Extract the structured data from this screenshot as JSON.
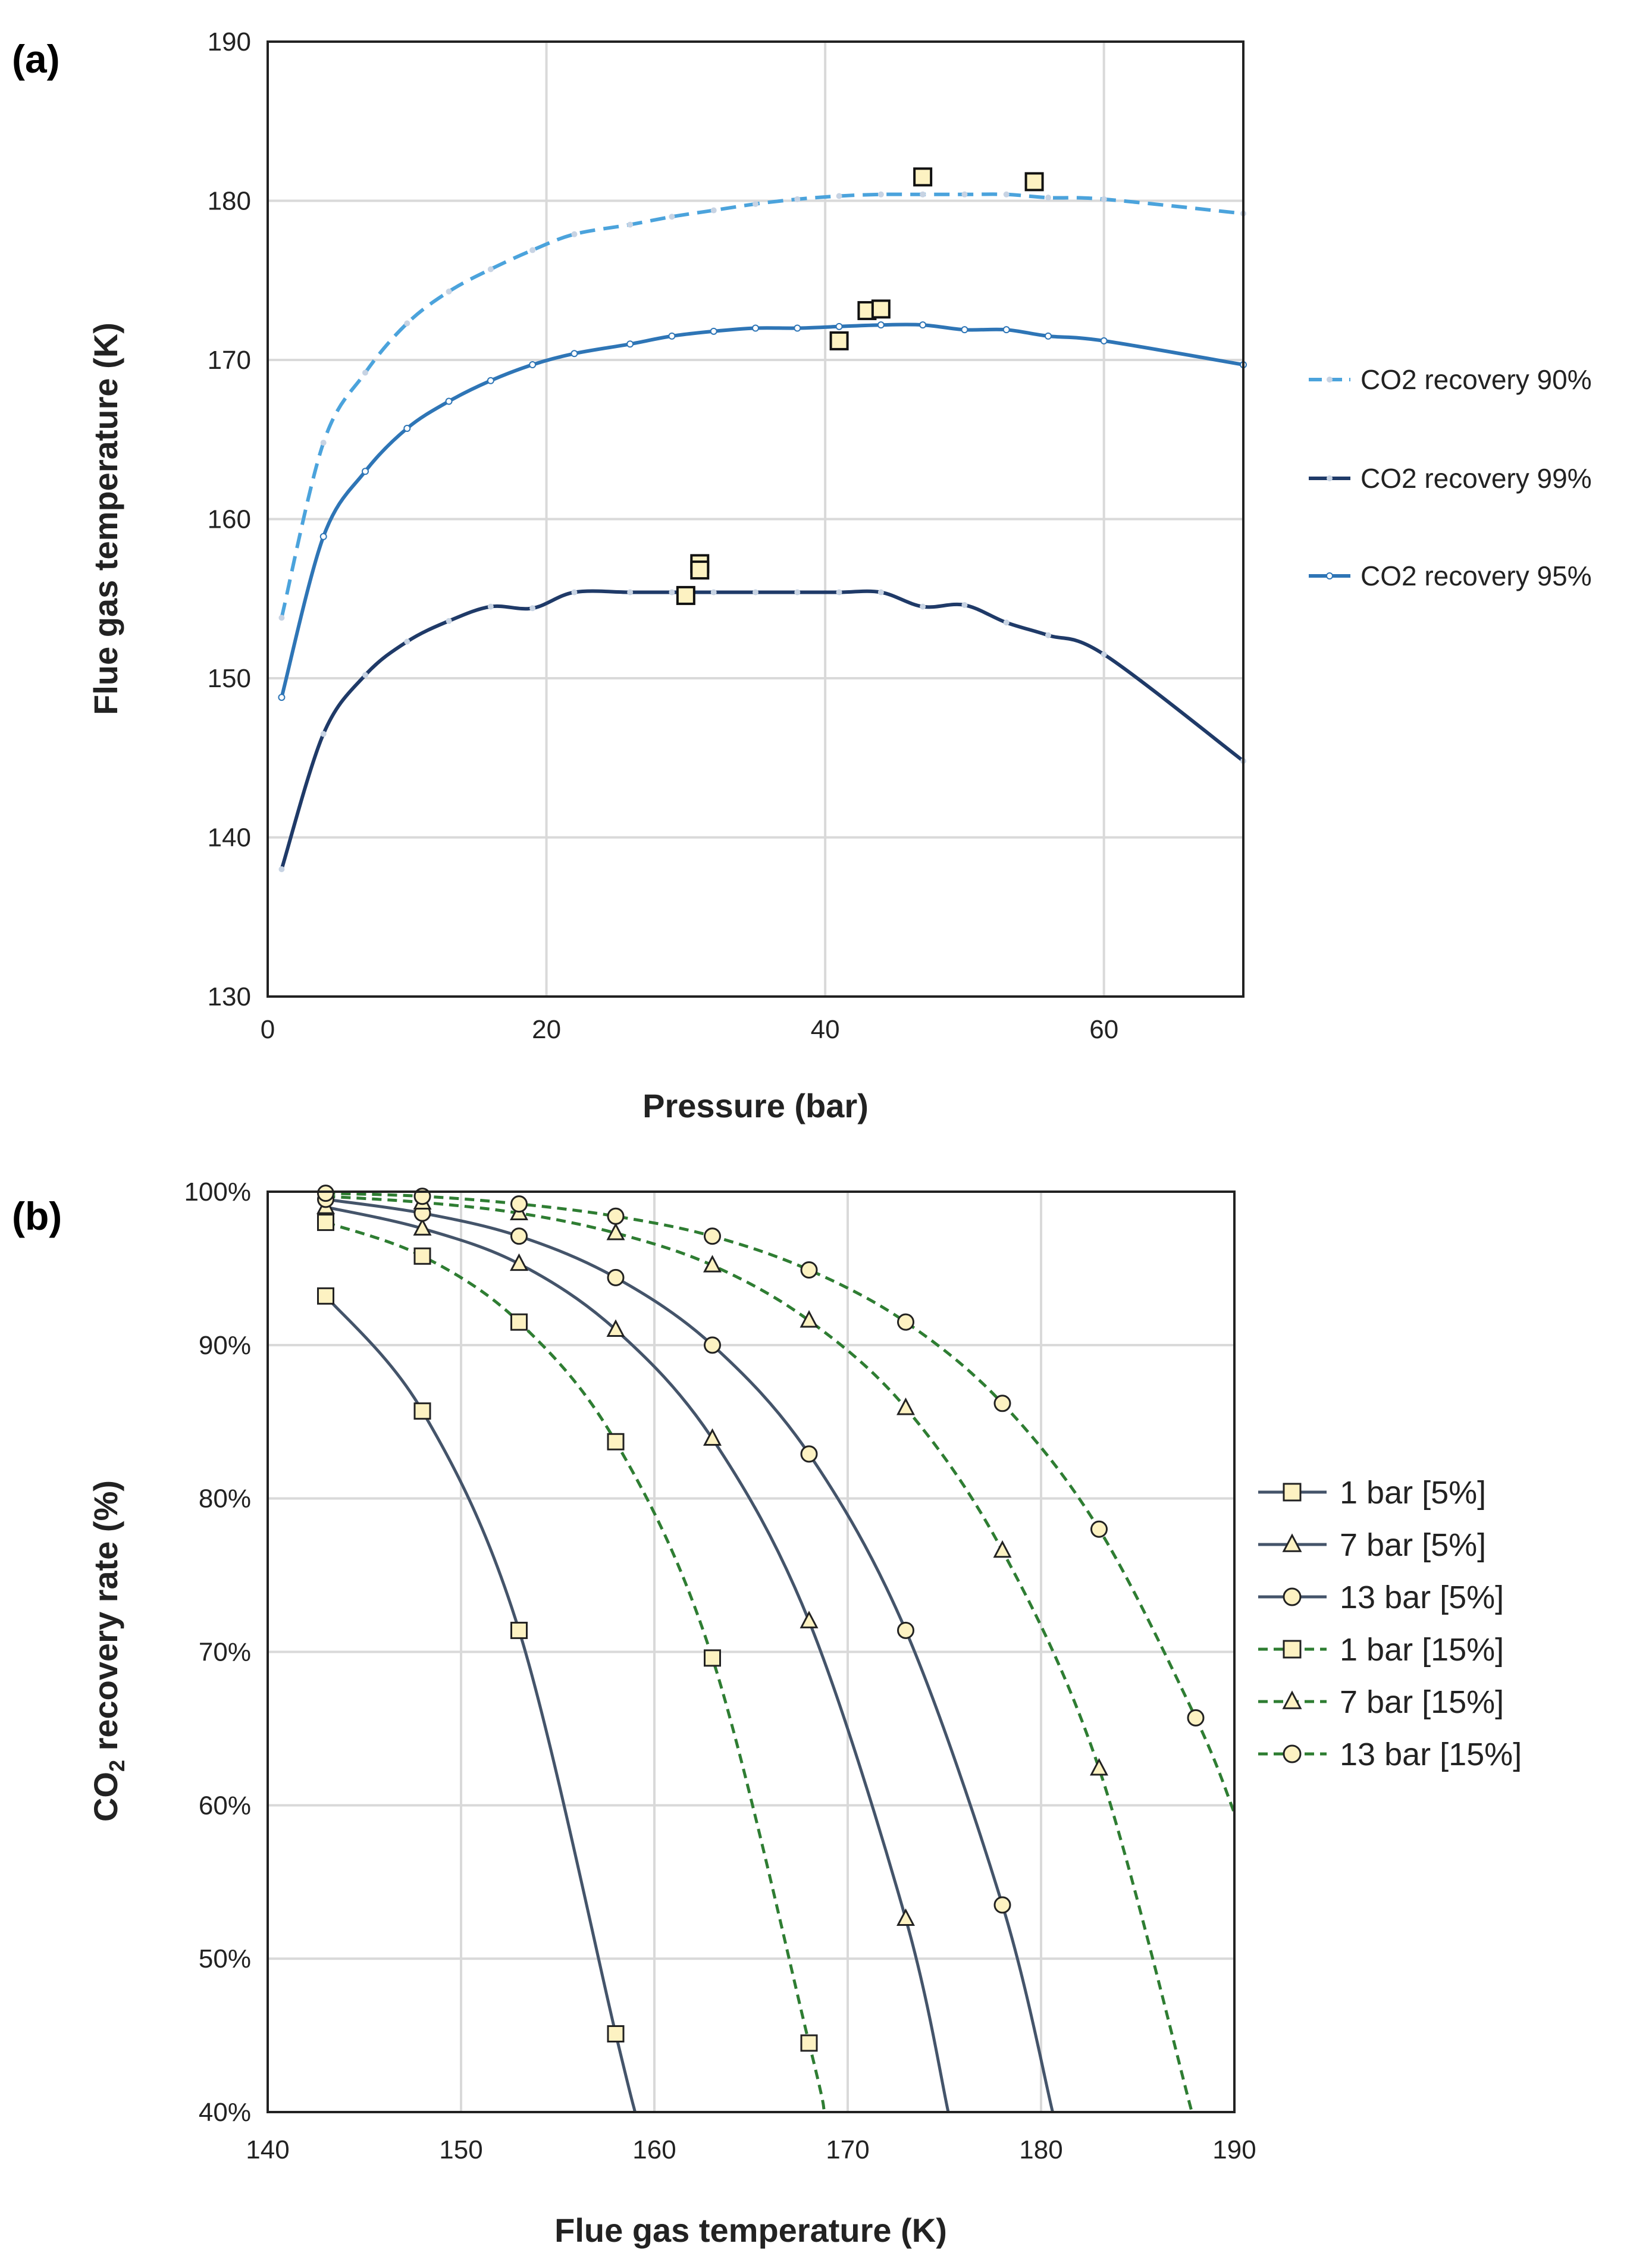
{
  "chart_data": [
    {
      "panel_label": "(a)",
      "type": "line",
      "xlabel": "Pressure (bar)",
      "ylabel": "Flue gas temperature (K)",
      "xlim": [
        0,
        70
      ],
      "ylim": [
        130,
        190
      ],
      "xticks": [
        0,
        20,
        40,
        60
      ],
      "yticks": [
        130,
        140,
        150,
        160,
        170,
        180,
        190
      ],
      "grid": true,
      "legend_position": "right",
      "series": [
        {
          "name": "CO2 recovery 90%",
          "color": "#4ba3dc",
          "style": "dashed",
          "marker": "dot",
          "x": [
            1,
            4,
            7,
            10,
            13,
            16,
            19,
            22,
            26,
            29,
            32,
            35,
            38,
            41,
            44,
            47,
            50,
            53,
            56,
            60,
            70
          ],
          "y": [
            153.8,
            164.8,
            169.2,
            172.3,
            174.3,
            175.7,
            176.9,
            177.9,
            178.5,
            179.0,
            179.4,
            179.8,
            180.1,
            180.3,
            180.4,
            180.4,
            180.4,
            180.4,
            180.2,
            180.1,
            179.2
          ]
        },
        {
          "name": "CO2 recovery 99%",
          "color": "#1f3a68",
          "style": "solid",
          "marker": "dot",
          "x": [
            1,
            4,
            7,
            10,
            13,
            16,
            19,
            22,
            26,
            29,
            32,
            35,
            38,
            41,
            44,
            47,
            50,
            53,
            56,
            60,
            70
          ],
          "y": [
            138.0,
            146.5,
            150.2,
            152.3,
            153.6,
            154.5,
            154.4,
            155.4,
            155.4,
            155.4,
            155.4,
            155.4,
            155.4,
            155.4,
            155.4,
            154.5,
            154.6,
            153.5,
            152.7,
            151.5,
            144.8
          ]
        },
        {
          "name": "CO2 recovery 95%",
          "color": "#2e75b6",
          "style": "solid",
          "marker": "open-circle",
          "x": [
            1,
            4,
            7,
            10,
            13,
            16,
            19,
            22,
            26,
            29,
            32,
            35,
            38,
            41,
            44,
            47,
            50,
            53,
            56,
            60,
            70
          ],
          "y": [
            148.8,
            158.9,
            163.0,
            165.7,
            167.4,
            168.7,
            169.7,
            170.4,
            171.0,
            171.5,
            171.8,
            172.0,
            172.0,
            172.1,
            172.2,
            172.2,
            171.9,
            171.9,
            171.5,
            171.2,
            169.7
          ]
        }
      ],
      "experimental_points": {
        "marker": "filled-square",
        "color": "#fdf2c2",
        "x": [
          47,
          55,
          43,
          44,
          41,
          31,
          31,
          30
        ],
        "y": [
          181.5,
          181.2,
          173.1,
          173.2,
          171.2,
          157.2,
          156.8,
          155.2
        ]
      }
    },
    {
      "panel_label": "(b)",
      "type": "line",
      "xlabel": "Flue gas temperature (K)",
      "ylabel_main": "CO",
      "ylabel_sub": "2",
      "ylabel_rest": " recovery rate (%)",
      "xlim": [
        140,
        190
      ],
      "ylim": [
        40,
        100
      ],
      "xticks": [
        140,
        150,
        160,
        170,
        180,
        190
      ],
      "yticks": [
        40,
        50,
        60,
        70,
        80,
        90,
        100
      ],
      "ytick_labels": [
        "40%",
        "50%",
        "60%",
        "70%",
        "80%",
        "90%",
        "100%"
      ],
      "grid": true,
      "legend_position": "right",
      "series": [
        {
          "name": "1 bar [5%]",
          "color": "#44546a",
          "style": "solid",
          "marker": "square",
          "x": [
            143,
            148,
            153,
            158,
            159
          ],
          "y": [
            93.2,
            85.7,
            71.4,
            45.1,
            40
          ],
          "markers": [
            [
              143,
              93.2
            ],
            [
              148,
              85.7
            ],
            [
              153,
              71.4
            ],
            [
              158,
              45.1
            ]
          ]
        },
        {
          "name": "7 bar [5%]",
          "color": "#44546a",
          "style": "solid",
          "marker": "triangle",
          "x": [
            143,
            148,
            153,
            158,
            163,
            168,
            173,
            175.2
          ],
          "y": [
            99.0,
            97.6,
            95.3,
            91.0,
            83.9,
            72.0,
            52.6,
            40
          ],
          "markers": [
            [
              143,
              99.0
            ],
            [
              148,
              97.6
            ],
            [
              153,
              95.3
            ],
            [
              158,
              91.0
            ],
            [
              163,
              83.9
            ],
            [
              168,
              72.0
            ],
            [
              173,
              52.6
            ]
          ]
        },
        {
          "name": "13 bar [5%]",
          "color": "#44546a",
          "style": "solid",
          "marker": "circle",
          "x": [
            143,
            148,
            153,
            158,
            163,
            168,
            173,
            178,
            180.6
          ],
          "y": [
            99.5,
            98.6,
            97.1,
            94.4,
            90.0,
            82.9,
            71.4,
            53.5,
            40
          ],
          "markers": [
            [
              143,
              99.5
            ],
            [
              148,
              98.6
            ],
            [
              153,
              97.1
            ],
            [
              158,
              94.4
            ],
            [
              163,
              90.0
            ],
            [
              168,
              82.9
            ],
            [
              173,
              71.4
            ],
            [
              178,
              53.5
            ]
          ]
        },
        {
          "name": "1 bar [15%]",
          "color": "#2e7d32",
          "style": "dashed",
          "marker": "square",
          "x": [
            143,
            148,
            153,
            158,
            163,
            168,
            168.8
          ],
          "y": [
            98.0,
            95.8,
            91.5,
            83.7,
            69.6,
            44.5,
            40
          ],
          "markers": [
            [
              143,
              98.0
            ],
            [
              148,
              95.8
            ],
            [
              153,
              91.5
            ],
            [
              158,
              83.7
            ],
            [
              163,
              69.6
            ],
            [
              168,
              44.5
            ]
          ]
        },
        {
          "name": "7 bar [15%]",
          "color": "#2e7d32",
          "style": "dashed",
          "marker": "triangle",
          "x": [
            143,
            148,
            153,
            158,
            163,
            168,
            173,
            178,
            183,
            187.8
          ],
          "y": [
            99.7,
            99.3,
            98.6,
            97.3,
            95.2,
            91.6,
            85.9,
            76.6,
            62.4,
            40
          ],
          "markers": [
            [
              148,
              99.3
            ],
            [
              153,
              98.6
            ],
            [
              158,
              97.3
            ],
            [
              163,
              95.2
            ],
            [
              168,
              91.6
            ],
            [
              173,
              85.9
            ],
            [
              178,
              76.6
            ],
            [
              183,
              62.4
            ]
          ]
        },
        {
          "name": "13 bar [15%]",
          "color": "#2e7d32",
          "style": "dashed",
          "marker": "circle",
          "x": [
            143,
            148,
            153,
            158,
            163,
            168,
            173,
            178,
            183,
            188,
            190
          ],
          "y": [
            99.9,
            99.7,
            99.2,
            98.4,
            97.1,
            94.9,
            91.5,
            86.2,
            78.0,
            65.7,
            59.5
          ],
          "markers": [
            [
              143,
              99.9
            ],
            [
              148,
              99.7
            ],
            [
              153,
              99.2
            ],
            [
              158,
              98.4
            ],
            [
              163,
              97.1
            ],
            [
              168,
              94.9
            ],
            [
              173,
              91.5
            ],
            [
              178,
              86.2
            ],
            [
              183,
              78.0
            ],
            [
              188,
              65.7
            ]
          ]
        }
      ]
    }
  ]
}
